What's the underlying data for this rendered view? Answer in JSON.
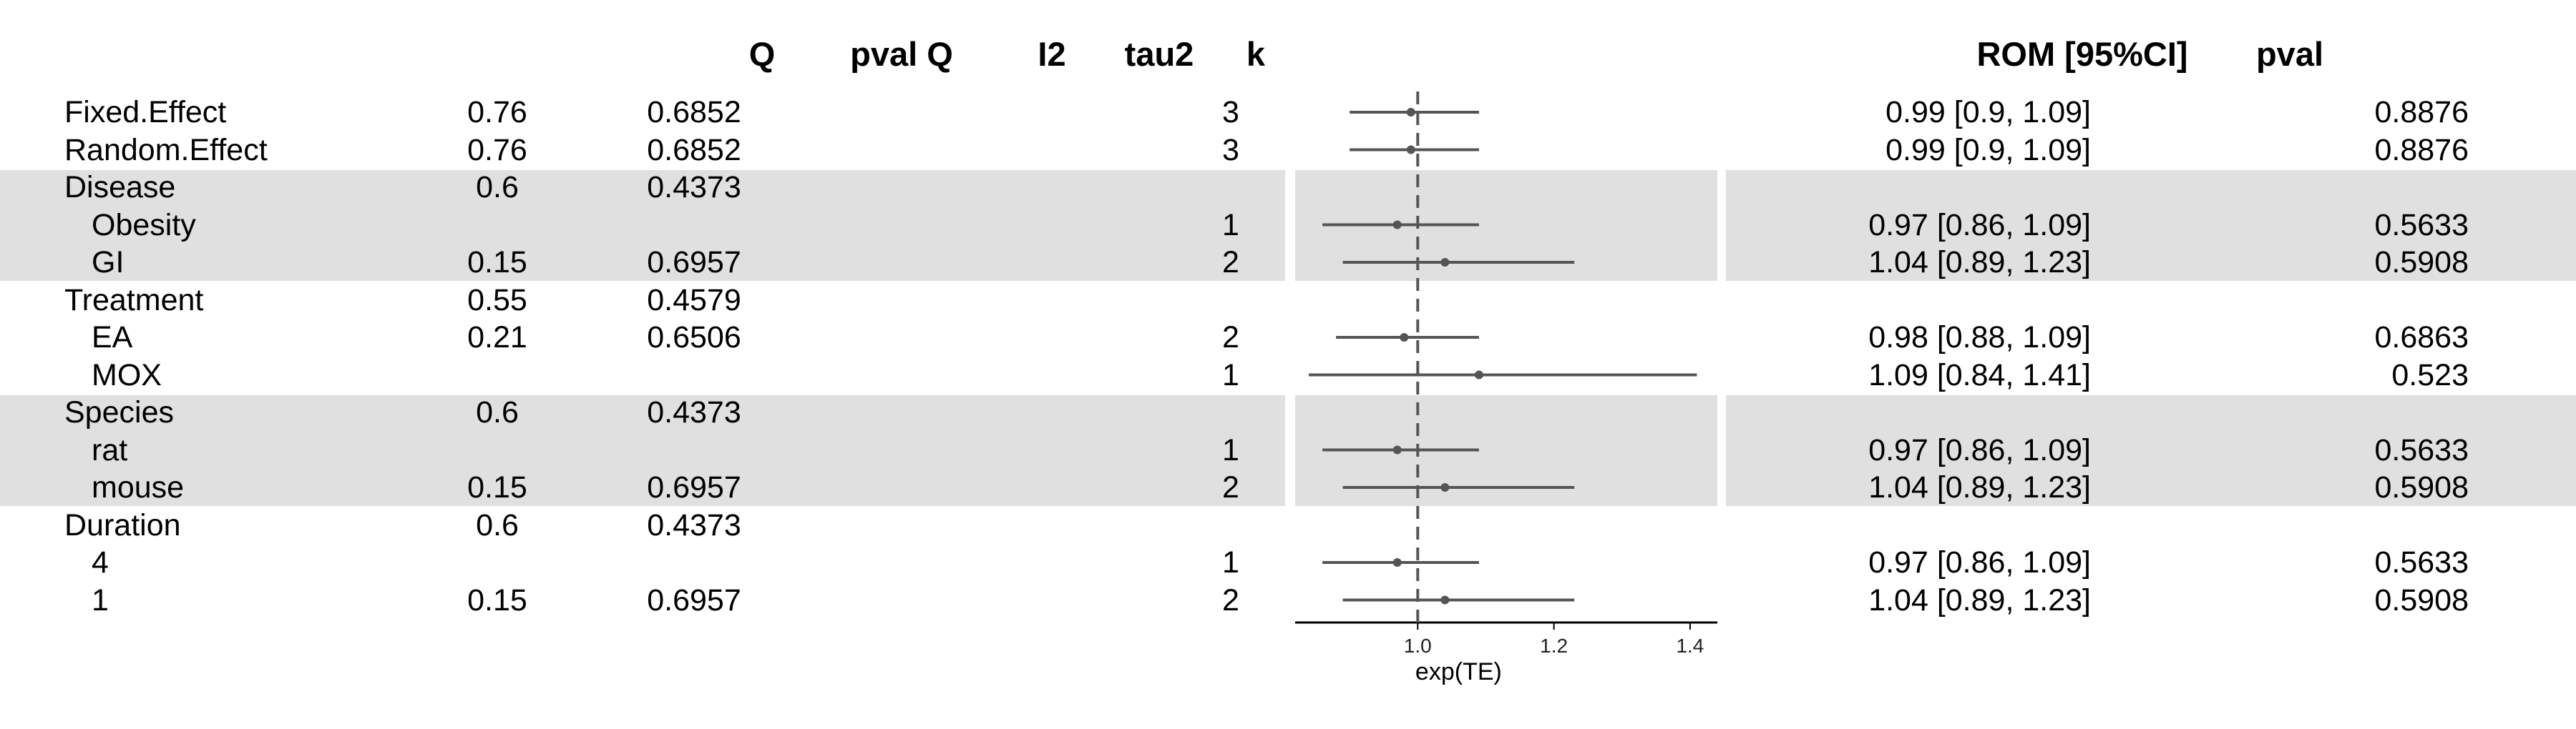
{
  "headers": {
    "col_q": "Q",
    "col_pval_q": "pval Q",
    "col_i2": "I2",
    "col_tau2": "tau2",
    "col_k": "k",
    "col_rom_ci": "ROM [95%CI]",
    "col_pval": "pval"
  },
  "rows": [
    {
      "label": "Fixed.Effect",
      "indent": false,
      "q": "0.76",
      "pval_q": "0.6852",
      "k": "3",
      "rom_ci": "0.99 [0.9, 1.09]",
      "pval": "0.8876"
    },
    {
      "label": "Random.Effect",
      "indent": false,
      "q": "0.76",
      "pval_q": "0.6852",
      "k": "3",
      "rom_ci": "0.99 [0.9, 1.09]",
      "pval": "0.8876"
    },
    {
      "label": "Disease",
      "indent": false,
      "q": "0.6",
      "pval_q": "0.4373",
      "k": "",
      "rom_ci": "",
      "pval": ""
    },
    {
      "label": "Obesity",
      "indent": true,
      "q": "",
      "pval_q": "",
      "k": "1",
      "rom_ci": "0.97 [0.86, 1.09]",
      "pval": "0.5633"
    },
    {
      "label": "GI",
      "indent": true,
      "q": "0.15",
      "pval_q": "0.6957",
      "k": "2",
      "rom_ci": "1.04 [0.89, 1.23]",
      "pval": "0.5908"
    },
    {
      "label": "Treatment",
      "indent": false,
      "q": "0.55",
      "pval_q": "0.4579",
      "k": "",
      "rom_ci": "",
      "pval": ""
    },
    {
      "label": "EA",
      "indent": true,
      "q": "0.21",
      "pval_q": "0.6506",
      "k": "2",
      "rom_ci": "0.98 [0.88, 1.09]",
      "pval": "0.6863"
    },
    {
      "label": "MOX",
      "indent": true,
      "q": "",
      "pval_q": "",
      "k": "1",
      "rom_ci": "1.09 [0.84, 1.41]",
      "pval": "0.523"
    },
    {
      "label": "Species",
      "indent": false,
      "q": "0.6",
      "pval_q": "0.4373",
      "k": "",
      "rom_ci": "",
      "pval": ""
    },
    {
      "label": "rat",
      "indent": true,
      "q": "",
      "pval_q": "",
      "k": "1",
      "rom_ci": "0.97 [0.86, 1.09]",
      "pval": "0.5633"
    },
    {
      "label": "mouse",
      "indent": true,
      "q": "0.15",
      "pval_q": "0.6957",
      "k": "2",
      "rom_ci": "1.04 [0.89, 1.23]",
      "pval": "0.5908"
    },
    {
      "label": "Duration",
      "indent": false,
      "q": "0.6",
      "pval_q": "0.4373",
      "k": "",
      "rom_ci": "",
      "pval": ""
    },
    {
      "label": "4",
      "indent": true,
      "q": "",
      "pval_q": "",
      "k": "1",
      "rom_ci": "0.97 [0.86, 1.09]",
      "pval": "0.5633"
    },
    {
      "label": "1",
      "indent": true,
      "q": "0.15",
      "pval_q": "0.6957",
      "k": "2",
      "rom_ci": "1.04 [0.89, 1.23]",
      "pval": "0.5908"
    }
  ],
  "chart_data": {
    "type": "forest",
    "xlabel": "exp(TE)",
    "xlim": [
      0.82,
      1.44
    ],
    "xticks": [
      1.0,
      1.2,
      1.4
    ],
    "xtick_labels": [
      "1.0",
      "1.2",
      "1.4"
    ],
    "reference_line": 1.0,
    "reference_line_style": "dashed",
    "shaded_groups": [
      "Disease",
      "Species"
    ],
    "estimates": [
      {
        "row": "Fixed.Effect",
        "est": 0.99,
        "lo": 0.9,
        "hi": 1.09
      },
      {
        "row": "Random.Effect",
        "est": 0.99,
        "lo": 0.9,
        "hi": 1.09
      },
      {
        "row": "Obesity",
        "est": 0.97,
        "lo": 0.86,
        "hi": 1.09
      },
      {
        "row": "GI",
        "est": 1.04,
        "lo": 0.89,
        "hi": 1.23
      },
      {
        "row": "EA",
        "est": 0.98,
        "lo": 0.88,
        "hi": 1.09
      },
      {
        "row": "MOX",
        "est": 1.09,
        "lo": 0.84,
        "hi": 1.41
      },
      {
        "row": "rat",
        "est": 0.97,
        "lo": 0.86,
        "hi": 1.09
      },
      {
        "row": "mouse",
        "est": 1.04,
        "lo": 0.89,
        "hi": 1.23
      },
      {
        "row": "4",
        "est": 0.97,
        "lo": 0.86,
        "hi": 1.09
      },
      {
        "row": "1",
        "est": 1.04,
        "lo": 0.89,
        "hi": 1.23
      }
    ]
  }
}
